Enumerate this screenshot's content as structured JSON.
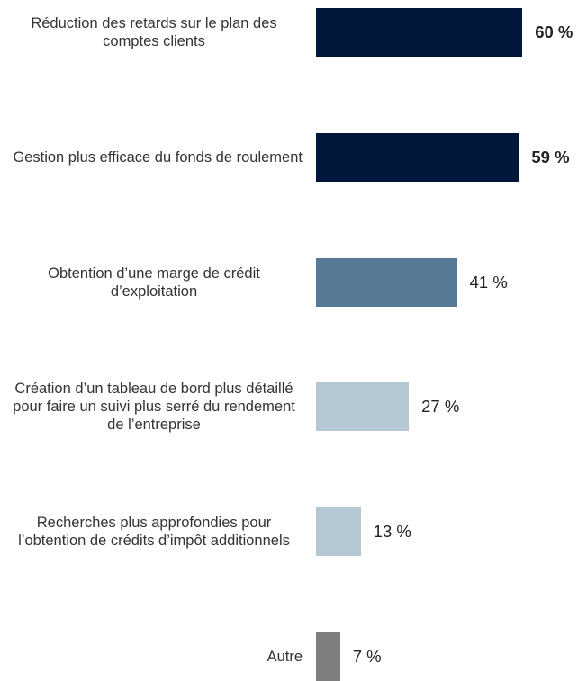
{
  "chart_data": {
    "type": "bar",
    "orientation": "horizontal",
    "categories": [
      "Réduction des retards sur le plan des comptes clients",
      "Gestion plus efficace du fonds de roulement",
      "Obtention d’une marge de crédit d’exploitation",
      "Création d’un tableau de bord plus détaillé pour faire un suivi plus serré du rendement de l’entreprise",
      "Recherches plus approfondies pour l’obtention de crédits d’impôt additionnels",
      "Autre"
    ],
    "values": [
      60,
      59,
      41,
      27,
      13,
      7
    ],
    "value_labels": [
      "60 %",
      "59 %",
      "41 %",
      "27 %",
      "13 %",
      "7 %"
    ],
    "colors": [
      "#00163a",
      "#00163a",
      "#567a96",
      "#b4c7d2",
      "#b4c7d2",
      "#7f7f7f"
    ],
    "value_label_bold": [
      true,
      true,
      false,
      false,
      false,
      false
    ]
  }
}
